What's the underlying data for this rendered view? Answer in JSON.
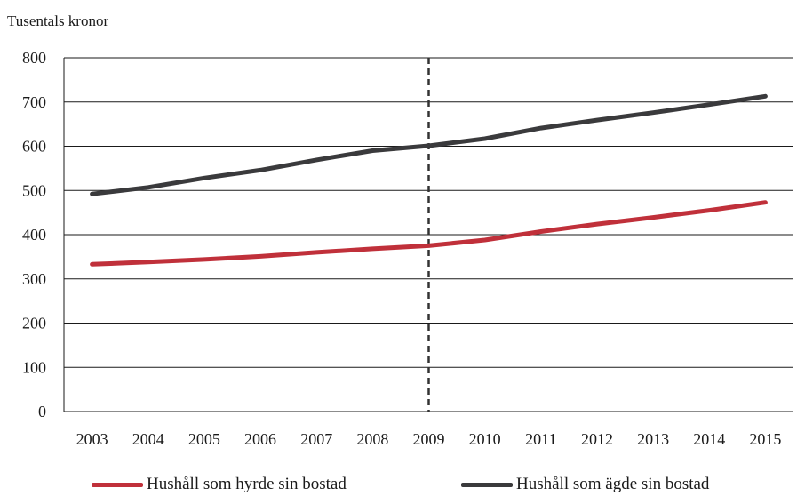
{
  "chart_data": {
    "type": "line",
    "ylabel": "Tusentals kronor",
    "xlabel": "",
    "title": "",
    "categories": [
      "2003",
      "2004",
      "2005",
      "2006",
      "2007",
      "2008",
      "2009",
      "2010",
      "2011",
      "2012",
      "2013",
      "2014",
      "2015"
    ],
    "ylim": [
      0,
      800
    ],
    "yticks": [
      0,
      100,
      200,
      300,
      400,
      500,
      600,
      700,
      800
    ],
    "grid": true,
    "marker_line": {
      "x": "2009",
      "style": "dashed"
    },
    "legend_position": "bottom",
    "series": [
      {
        "name": "Hushåll som hyrde sin bostad",
        "color": "#c0303a",
        "values": [
          333,
          338,
          344,
          351,
          360,
          368,
          375,
          388,
          407,
          424,
          439,
          455,
          473
        ]
      },
      {
        "name": "Hushåll som ägde sin bostad",
        "color": "#3a3a3c",
        "values": [
          492,
          507,
          528,
          546,
          569,
          590,
          601,
          617,
          641,
          659,
          676,
          694,
          713
        ]
      }
    ]
  }
}
